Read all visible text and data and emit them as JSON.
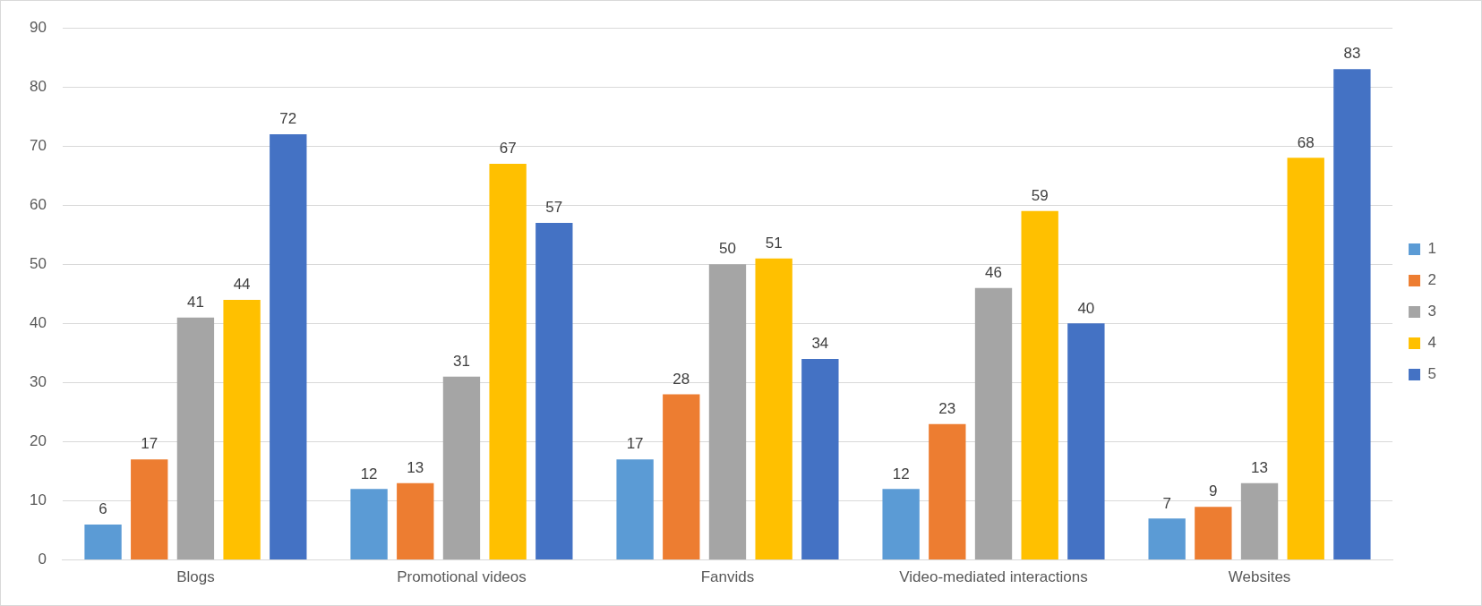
{
  "chart_data": {
    "type": "bar",
    "categories": [
      "Blogs",
      "Promotional videos",
      "Fanvids",
      "Video-mediated interactions",
      "Websites"
    ],
    "series": [
      {
        "name": "1",
        "color": "#5b9bd5",
        "values": [
          6,
          12,
          17,
          12,
          7
        ]
      },
      {
        "name": "2",
        "color": "#ed7d31",
        "values": [
          17,
          13,
          28,
          23,
          9
        ]
      },
      {
        "name": "3",
        "color": "#a5a5a5",
        "values": [
          41,
          31,
          50,
          46,
          13
        ]
      },
      {
        "name": "4",
        "color": "#ffc000",
        "values": [
          44,
          67,
          51,
          59,
          68
        ]
      },
      {
        "name": "5",
        "color": "#4472c4",
        "values": [
          72,
          57,
          34,
          40,
          83
        ]
      }
    ],
    "ylim": [
      0,
      90
    ],
    "yticks": [
      0,
      10,
      20,
      30,
      40,
      50,
      60,
      70,
      80,
      90
    ],
    "grid": "y",
    "legend": "right",
    "data_labels": true
  }
}
